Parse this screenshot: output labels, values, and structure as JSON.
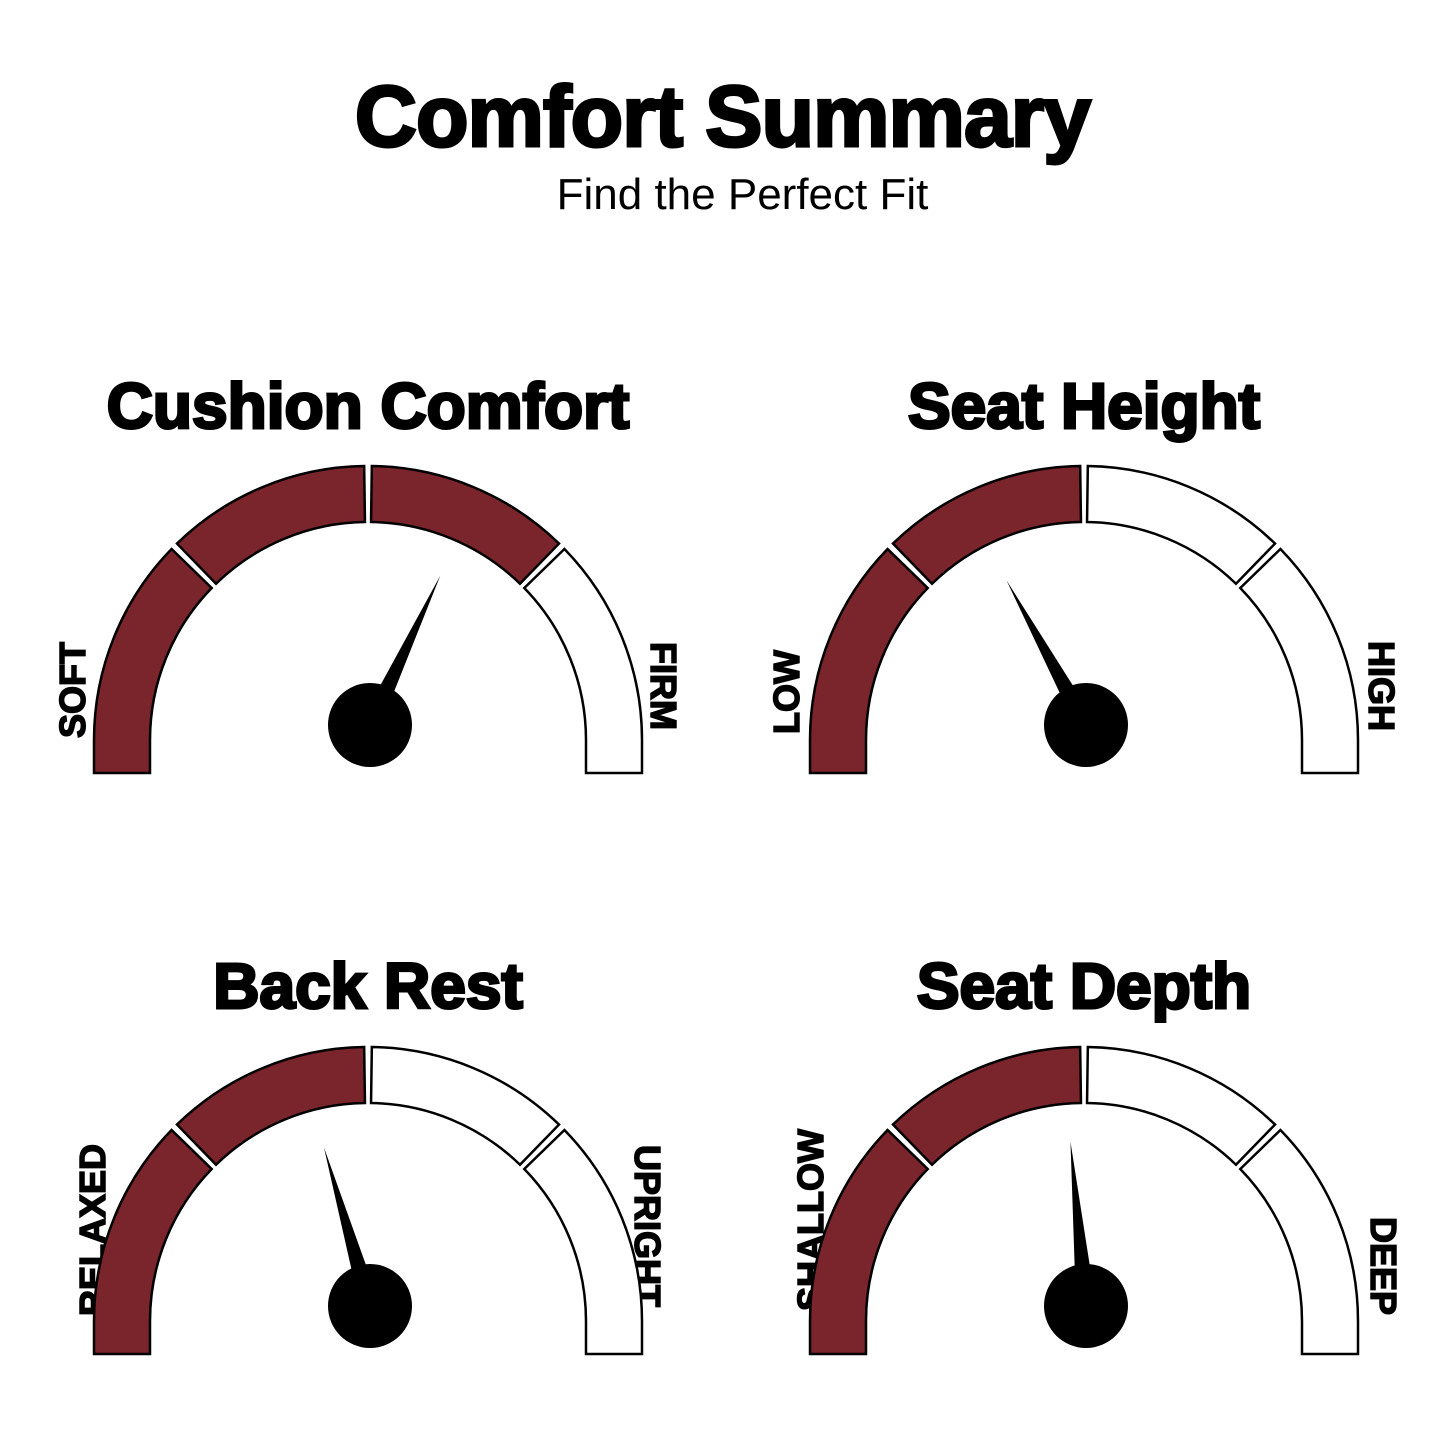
{
  "header": {
    "title": "Comfort Summary",
    "subtitle": "Find the Perfect Fit"
  },
  "colors": {
    "filled": "#7a242c",
    "empty": "#ffffff",
    "outline": "#000000",
    "needle": "#000000"
  },
  "gauges": [
    {
      "title": "Cushion Comfort",
      "min_label": "SOFT",
      "max_label": "FIRM",
      "segments": 4,
      "filled_segments": 3,
      "needle_value": 0.64
    },
    {
      "title": "Seat Height",
      "min_label": "LOW",
      "max_label": "HIGH",
      "segments": 4,
      "filled_segments": 2,
      "needle_value": 0.34
    },
    {
      "title": "Back Rest",
      "min_label": "RELAXED",
      "max_label": "UPRIGHT",
      "segments": 4,
      "filled_segments": 2,
      "needle_value": 0.41
    },
    {
      "title": "Seat Depth",
      "min_label": "SHALLOW",
      "max_label": "DEEP",
      "segments": 4,
      "filled_segments": 2,
      "needle_value": 0.47
    }
  ]
}
